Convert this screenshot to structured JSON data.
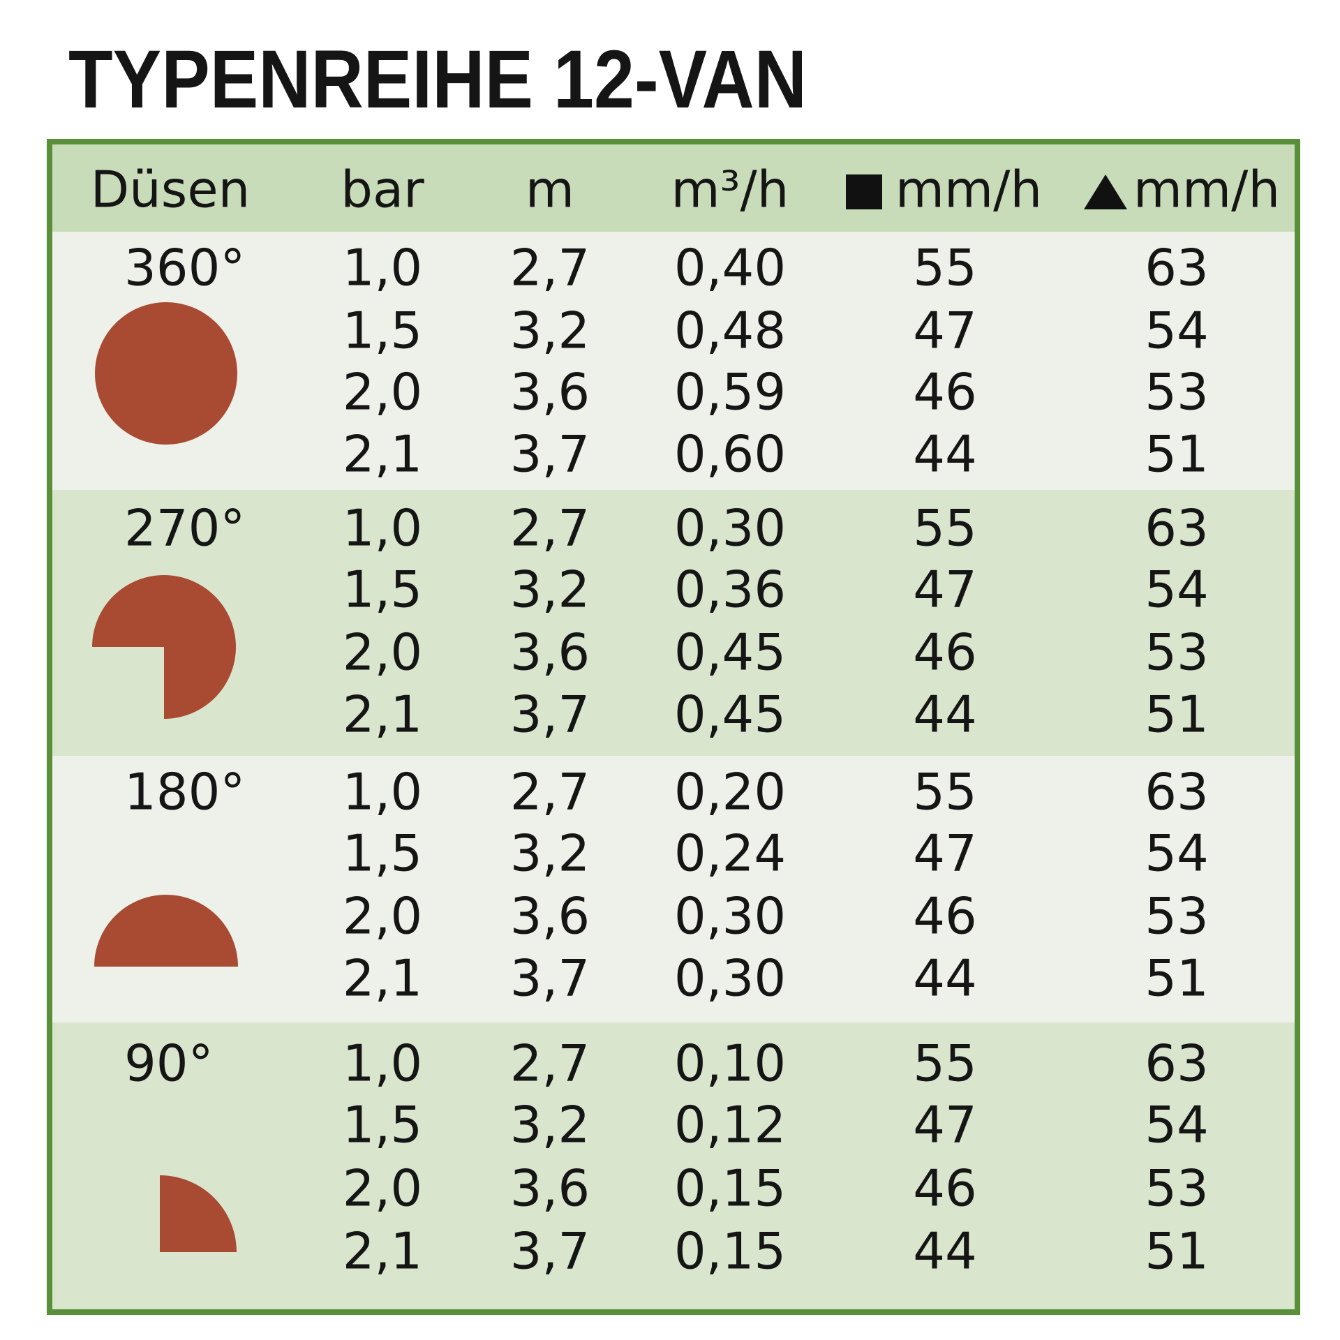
{
  "title": "TYPENREIHE 12-VAN",
  "header": {
    "columns": [
      "Düsen",
      "bar",
      "m",
      "m³/h",
      "mm/h",
      "mm/h"
    ]
  },
  "groups": [
    {
      "label": "360°",
      "rows": [
        [
          "1,0",
          "2,7",
          "0,40",
          "55",
          "63"
        ],
        [
          "1,5",
          "3,2",
          "0,48",
          "47",
          "54"
        ],
        [
          "2,0",
          "3,6",
          "0,59",
          "46",
          "53"
        ],
        [
          "2,1",
          "3,7",
          "0,60",
          "44",
          "51"
        ]
      ]
    },
    {
      "label": "270°",
      "rows": [
        [
          "1,0",
          "2,7",
          "0,30",
          "55",
          "63"
        ],
        [
          "1,5",
          "3,2",
          "0,36",
          "47",
          "54"
        ],
        [
          "2,0",
          "3,6",
          "0,45",
          "46",
          "53"
        ],
        [
          "2,1",
          "3,7",
          "0,45",
          "44",
          "51"
        ]
      ]
    },
    {
      "label": "180°",
      "rows": [
        [
          "1,0",
          "2,7",
          "0,20",
          "55",
          "63"
        ],
        [
          "1,5",
          "3,2",
          "0,24",
          "47",
          "54"
        ],
        [
          "2,0",
          "3,6",
          "0,30",
          "46",
          "53"
        ],
        [
          "2,1",
          "3,7",
          "0,30",
          "44",
          "51"
        ]
      ]
    },
    {
      "label": "90°",
      "rows": [
        [
          "1,0",
          "2,7",
          "0,10",
          "55",
          "63"
        ],
        [
          "1,5",
          "3,2",
          "0,12",
          "47",
          "54"
        ],
        [
          "2,0",
          "3,6",
          "0,15",
          "46",
          "53"
        ],
        [
          "2,1",
          "3,7",
          "0,15",
          "44",
          "51"
        ]
      ]
    }
  ]
}
